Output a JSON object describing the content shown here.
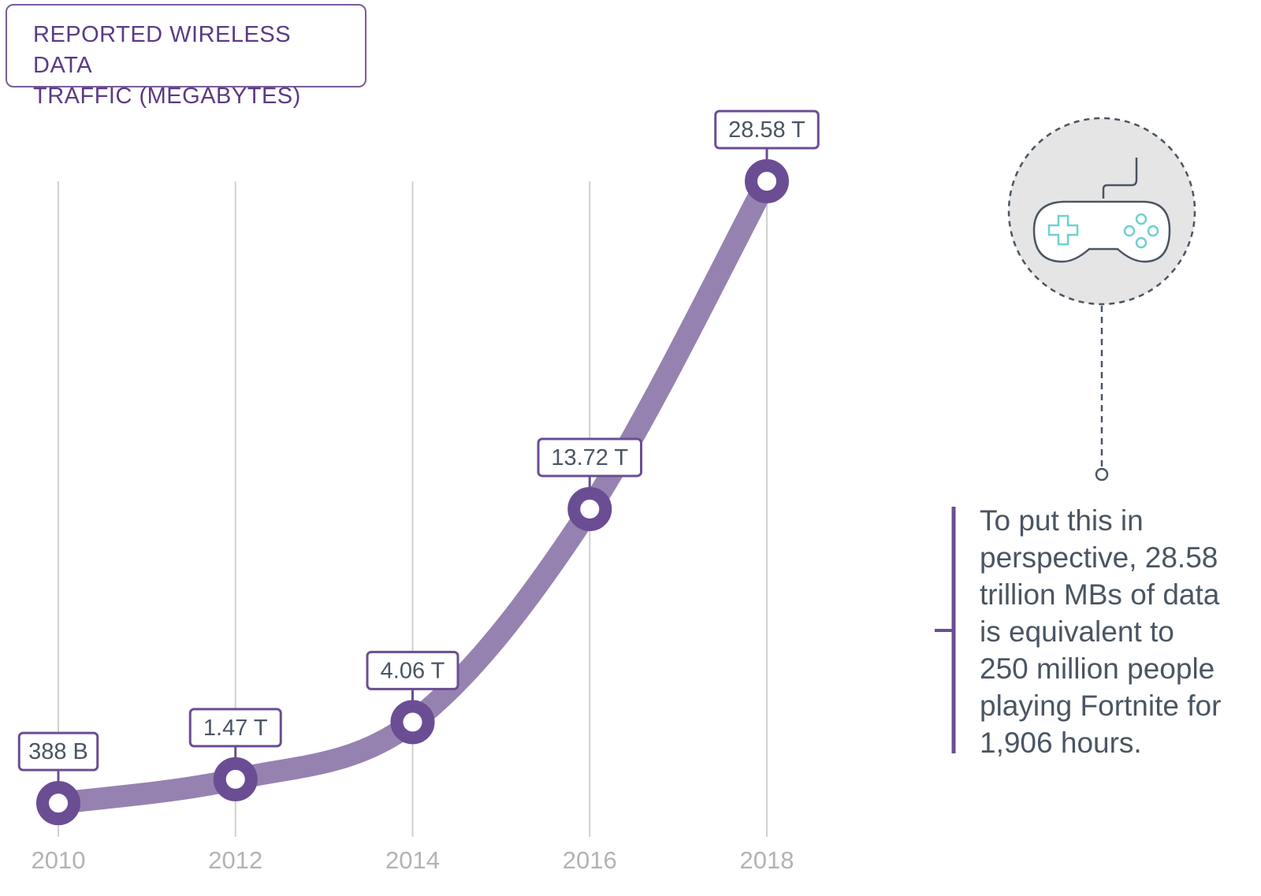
{
  "title_lines": [
    "REPORTED WIRELESS DATA",
    "TRAFFIC (MEGABYTES)"
  ],
  "chart_data": {
    "type": "line",
    "title": "REPORTED WIRELESS DATA TRAFFIC (MEGABYTES)",
    "x": [
      "2010",
      "2012",
      "2014",
      "2016",
      "2018"
    ],
    "values": [
      0.388,
      1.47,
      4.06,
      13.72,
      28.58
    ],
    "unit": "trillion megabytes",
    "data_labels": [
      "388 B",
      "1.47 T",
      "4.06 T",
      "13.72 T",
      "28.58 T"
    ],
    "grid": "vertical lines at each year",
    "legend": "none"
  },
  "note": {
    "text_lines": [
      "To put this in",
      "perspective, 28.58",
      "trillion MBs of data",
      "is equivalent to",
      "250 million people",
      "playing Fortnite for",
      "1,906 hours."
    ]
  },
  "icon": "game-controller-icon",
  "colors": {
    "line": "#9682b0",
    "marker": "#6b4d94",
    "label_border": "#6b4d94",
    "label_text": "#4b5563",
    "title": "#5b3a86",
    "grid": "#d0d0d0",
    "axis_text": "#b3b3b3",
    "icon_circle_fill": "#e5e5e5",
    "icon_stroke": "#4b5563",
    "icon_accent": "#6fd0d2"
  }
}
